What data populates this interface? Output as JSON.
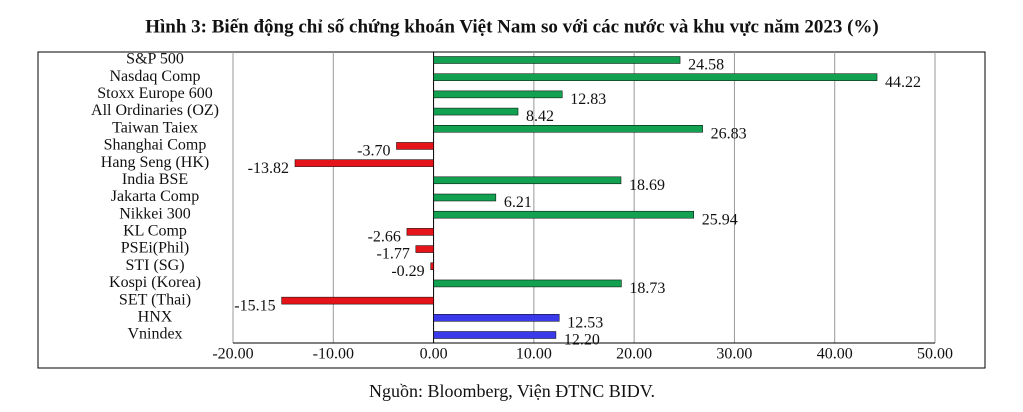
{
  "chart_data": {
    "type": "barh",
    "title": "Hình 3: Biến động chỉ số chứng khoán Việt Nam so với các nước và khu vực năm 2023 (%)",
    "source": "Nguồn: Bloomberg, Viện ĐTNC BIDV.",
    "categories": [
      "S&P 500",
      "Nasdaq Comp",
      "Stoxx Europe 600",
      "All Ordinaries (OZ)",
      "Taiwan Taiex",
      "Shanghai Comp",
      "Hang Seng (HK)",
      "India BSE",
      "Jakarta Comp",
      "Nikkei 300",
      "KL Comp",
      "PSEi(Phil)",
      "STI (SG)",
      "Kospi (Korea)",
      "SET (Thai)",
      "HNX",
      "Vnindex"
    ],
    "values": [
      24.58,
      44.22,
      12.83,
      8.42,
      26.83,
      -3.7,
      -13.82,
      18.69,
      6.21,
      25.94,
      -2.66,
      -1.77,
      -0.29,
      18.73,
      -15.15,
      12.53,
      12.2
    ],
    "value_labels": [
      "24.58",
      "44.22",
      "12.83",
      "8.42",
      "26.83",
      "-3.70",
      "-13.82",
      "18.69",
      "6.21",
      "25.94",
      "-2.66",
      "-1.77",
      "-0.29",
      "18.73",
      "-15.15",
      "12.53",
      "12.20"
    ],
    "colors": [
      "#12a150",
      "#12a150",
      "#12a150",
      "#12a150",
      "#12a150",
      "#e5141b",
      "#e5141b",
      "#12a150",
      "#12a150",
      "#12a150",
      "#e5141b",
      "#e5141b",
      "#e5141b",
      "#12a150",
      "#e5141b",
      "#3a3aeb",
      "#3a3aeb"
    ],
    "xlim": [
      -20,
      50
    ],
    "xticks": [
      {
        "value": -20,
        "label": "-20.00"
      },
      {
        "value": -10,
        "label": "-10.00"
      },
      {
        "value": 0,
        "label": "0.00"
      },
      {
        "value": 10,
        "label": "10.00"
      },
      {
        "value": 20,
        "label": "20.00"
      },
      {
        "value": 30,
        "label": "30.00"
      },
      {
        "value": 40,
        "label": "40.00"
      },
      {
        "value": 50,
        "label": "50.00"
      }
    ],
    "grid": true
  }
}
